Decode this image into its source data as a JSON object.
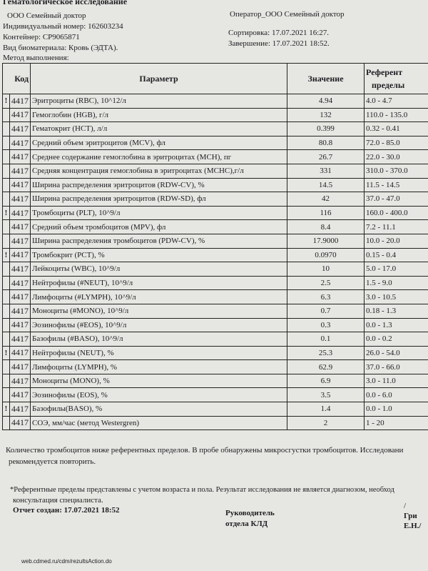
{
  "header": {
    "title": "Гематологическое исследование",
    "left": [
      "ООО Семейный доктор",
      "Индивидуальный номер: 162603234",
      "Контейнер: СР9065871",
      "Вид биоматериала: Кровь (ЭДТА).",
      "Метод выполнения:"
    ],
    "right": [
      "Оператор_ООО Семейный доктор",
      "Сортировка: 17.07.2021 16:27.",
      "Завершение: 17.07.2021 18:52."
    ]
  },
  "table": {
    "columns": [
      "Код",
      "Параметр",
      "Значение",
      "Референт",
      "пределы"
    ],
    "rows": [
      [
        "!",
        "4417",
        "Эритроциты (RBC), 10^12/л",
        "4.94",
        "4.0 - 4.7"
      ],
      [
        "",
        "4417",
        "Гемоглобин (HGB), г/л",
        "132",
        "110.0 - 135.0"
      ],
      [
        "",
        "4417",
        "Гематокрит (HCT), л/л",
        "0.399",
        "0.32 - 0.41"
      ],
      [
        "",
        "4417",
        "Средний объем эритроцитов (MCV), фл",
        "80.8",
        "72.0 - 85.0"
      ],
      [
        "",
        "4417",
        "Среднее содержание гемоглобина в эритроцитах (MCH), пг",
        "26.7",
        "22.0 - 30.0"
      ],
      [
        "",
        "4417",
        "Средняя концентрация гемоглобина в эритроцитах (MCHC),г/л",
        "331",
        "310.0 - 370.0"
      ],
      [
        "",
        "4417",
        "Ширина распределения эритроцитов (RDW-CV), %",
        "14.5",
        "11.5 - 14.5"
      ],
      [
        "",
        "4417",
        "Ширина распределения эритроцитов (RDW-SD), фл",
        "42",
        "37.0 - 47.0"
      ],
      [
        "!",
        "4417",
        "Тромбоциты (PLT), 10^9/л",
        "116",
        "160.0 - 400.0"
      ],
      [
        "",
        "4417",
        "Средний объем тромбоцитов (MPV), фл",
        "8.4",
        "7.2 - 11.1"
      ],
      [
        "",
        "4417",
        "Ширина распределения тромбоцитов (PDW-CV), %",
        "17.9000",
        "10.0 - 20.0"
      ],
      [
        "!",
        "4417",
        "Тромбокрит (PCT), %",
        "0.0970",
        "0.15 - 0.4"
      ],
      [
        "",
        "4417",
        "Лейкоциты (WBC), 10^9/л",
        "10",
        "5.0 - 17.0"
      ],
      [
        "",
        "4417",
        "Нейтрофилы (#NEUT), 10^9/л",
        "2.5",
        "1.5 - 9.0"
      ],
      [
        "",
        "4417",
        "Лимфоциты (#LYMPH), 10^9/л",
        "6.3",
        "3.0 - 10.5"
      ],
      [
        "",
        "4417",
        "Моноциты (#MONO), 10^9/л",
        "0.7",
        "0.18 - 1.3"
      ],
      [
        "",
        "4417",
        "Эозинофилы (#EOS), 10^9/л",
        "0.3",
        "0.0 - 1.3"
      ],
      [
        "",
        "4417",
        "Базофилы (#BASO), 10^9/л",
        "0.1",
        "0.0 - 0.2"
      ],
      [
        "!",
        "4417",
        "Нейтрофилы (NEUT), %",
        "25.3",
        "26.0 - 54.0"
      ],
      [
        "",
        "4417",
        "Лимфоциты (LYMPH), %",
        "62.9",
        "37.0 - 66.0"
      ],
      [
        "",
        "4417",
        "Моноциты (MONO), %",
        "6.9",
        "3.0 - 11.0"
      ],
      [
        "",
        "4417",
        "Эозинофилы (EOS), %",
        "3.5",
        "0.0 - 6.0"
      ],
      [
        "!",
        "4417",
        "Базофилы(BASO), %",
        "1.4",
        "0.0 - 1.0"
      ],
      [
        "",
        "4417",
        "СОЭ, мм/час (метод Westergren)",
        "2",
        "1 - 20"
      ]
    ]
  },
  "footer": {
    "comment": [
      "Количество тромбоцитов ниже референтных пределов. В пробе обнаружены микросгустки тромбоцитов. Исследовани",
      "рекомендуется повторить."
    ],
    "note": [
      "*Референтные пределы представлены с учетом возраста и пола. Результат исследования не является диагнозом, необход",
      "консультация специалиста."
    ],
    "created": "Отчет создан: 17.07.2021 18:52",
    "head": [
      "Руководитель",
      "отдела КЛД"
    ],
    "signature": [
      "/",
      "Гри",
      "Е.Н./"
    ],
    "url": "web.cdmed.ru/cdm/rezultsAction.do"
  }
}
